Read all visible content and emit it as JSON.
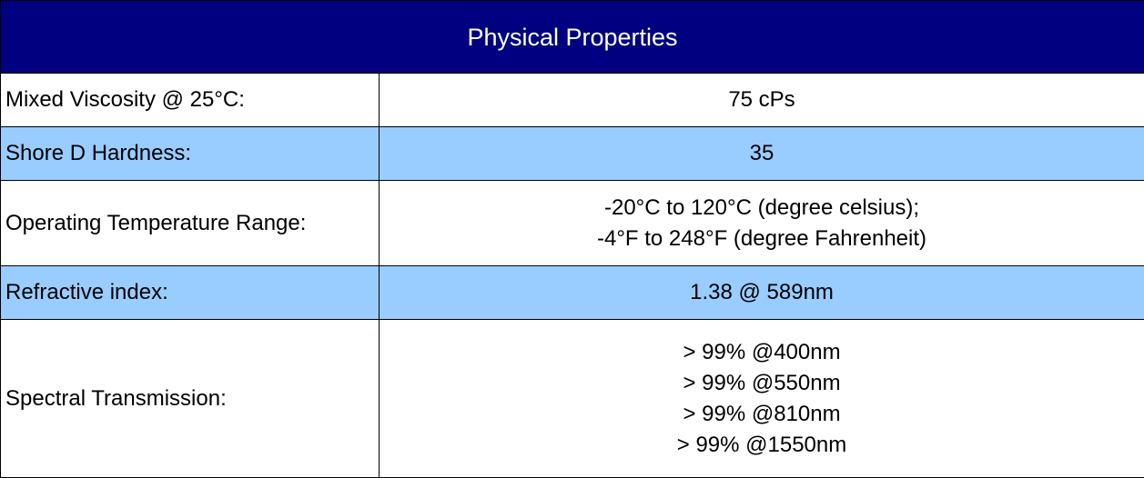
{
  "title": "Physical Properties",
  "colors": {
    "header_bg": "#000080",
    "header_text": "#ffffff",
    "stripe": "#99ccff",
    "row_bg": "#ffffff",
    "border": "#000000"
  },
  "rows": [
    {
      "label": "Mixed Viscosity @ 25°C:",
      "values": [
        "75 cPs"
      ]
    },
    {
      "label": "Shore D Hardness:",
      "values": [
        "35"
      ]
    },
    {
      "label": "Operating Temperature Range:",
      "values": [
        "-20°C to 120°C (degree celsius);",
        "-4°F to 248°F (degree Fahrenheit)"
      ]
    },
    {
      "label": "Refractive index:",
      "values": [
        "1.38 @ 589nm"
      ]
    },
    {
      "label": "Spectral Transmission:",
      "values": [
        "> 99% @400nm",
        "> 99% @550nm",
        "> 99% @810nm",
        "> 99% @1550nm"
      ]
    }
  ]
}
